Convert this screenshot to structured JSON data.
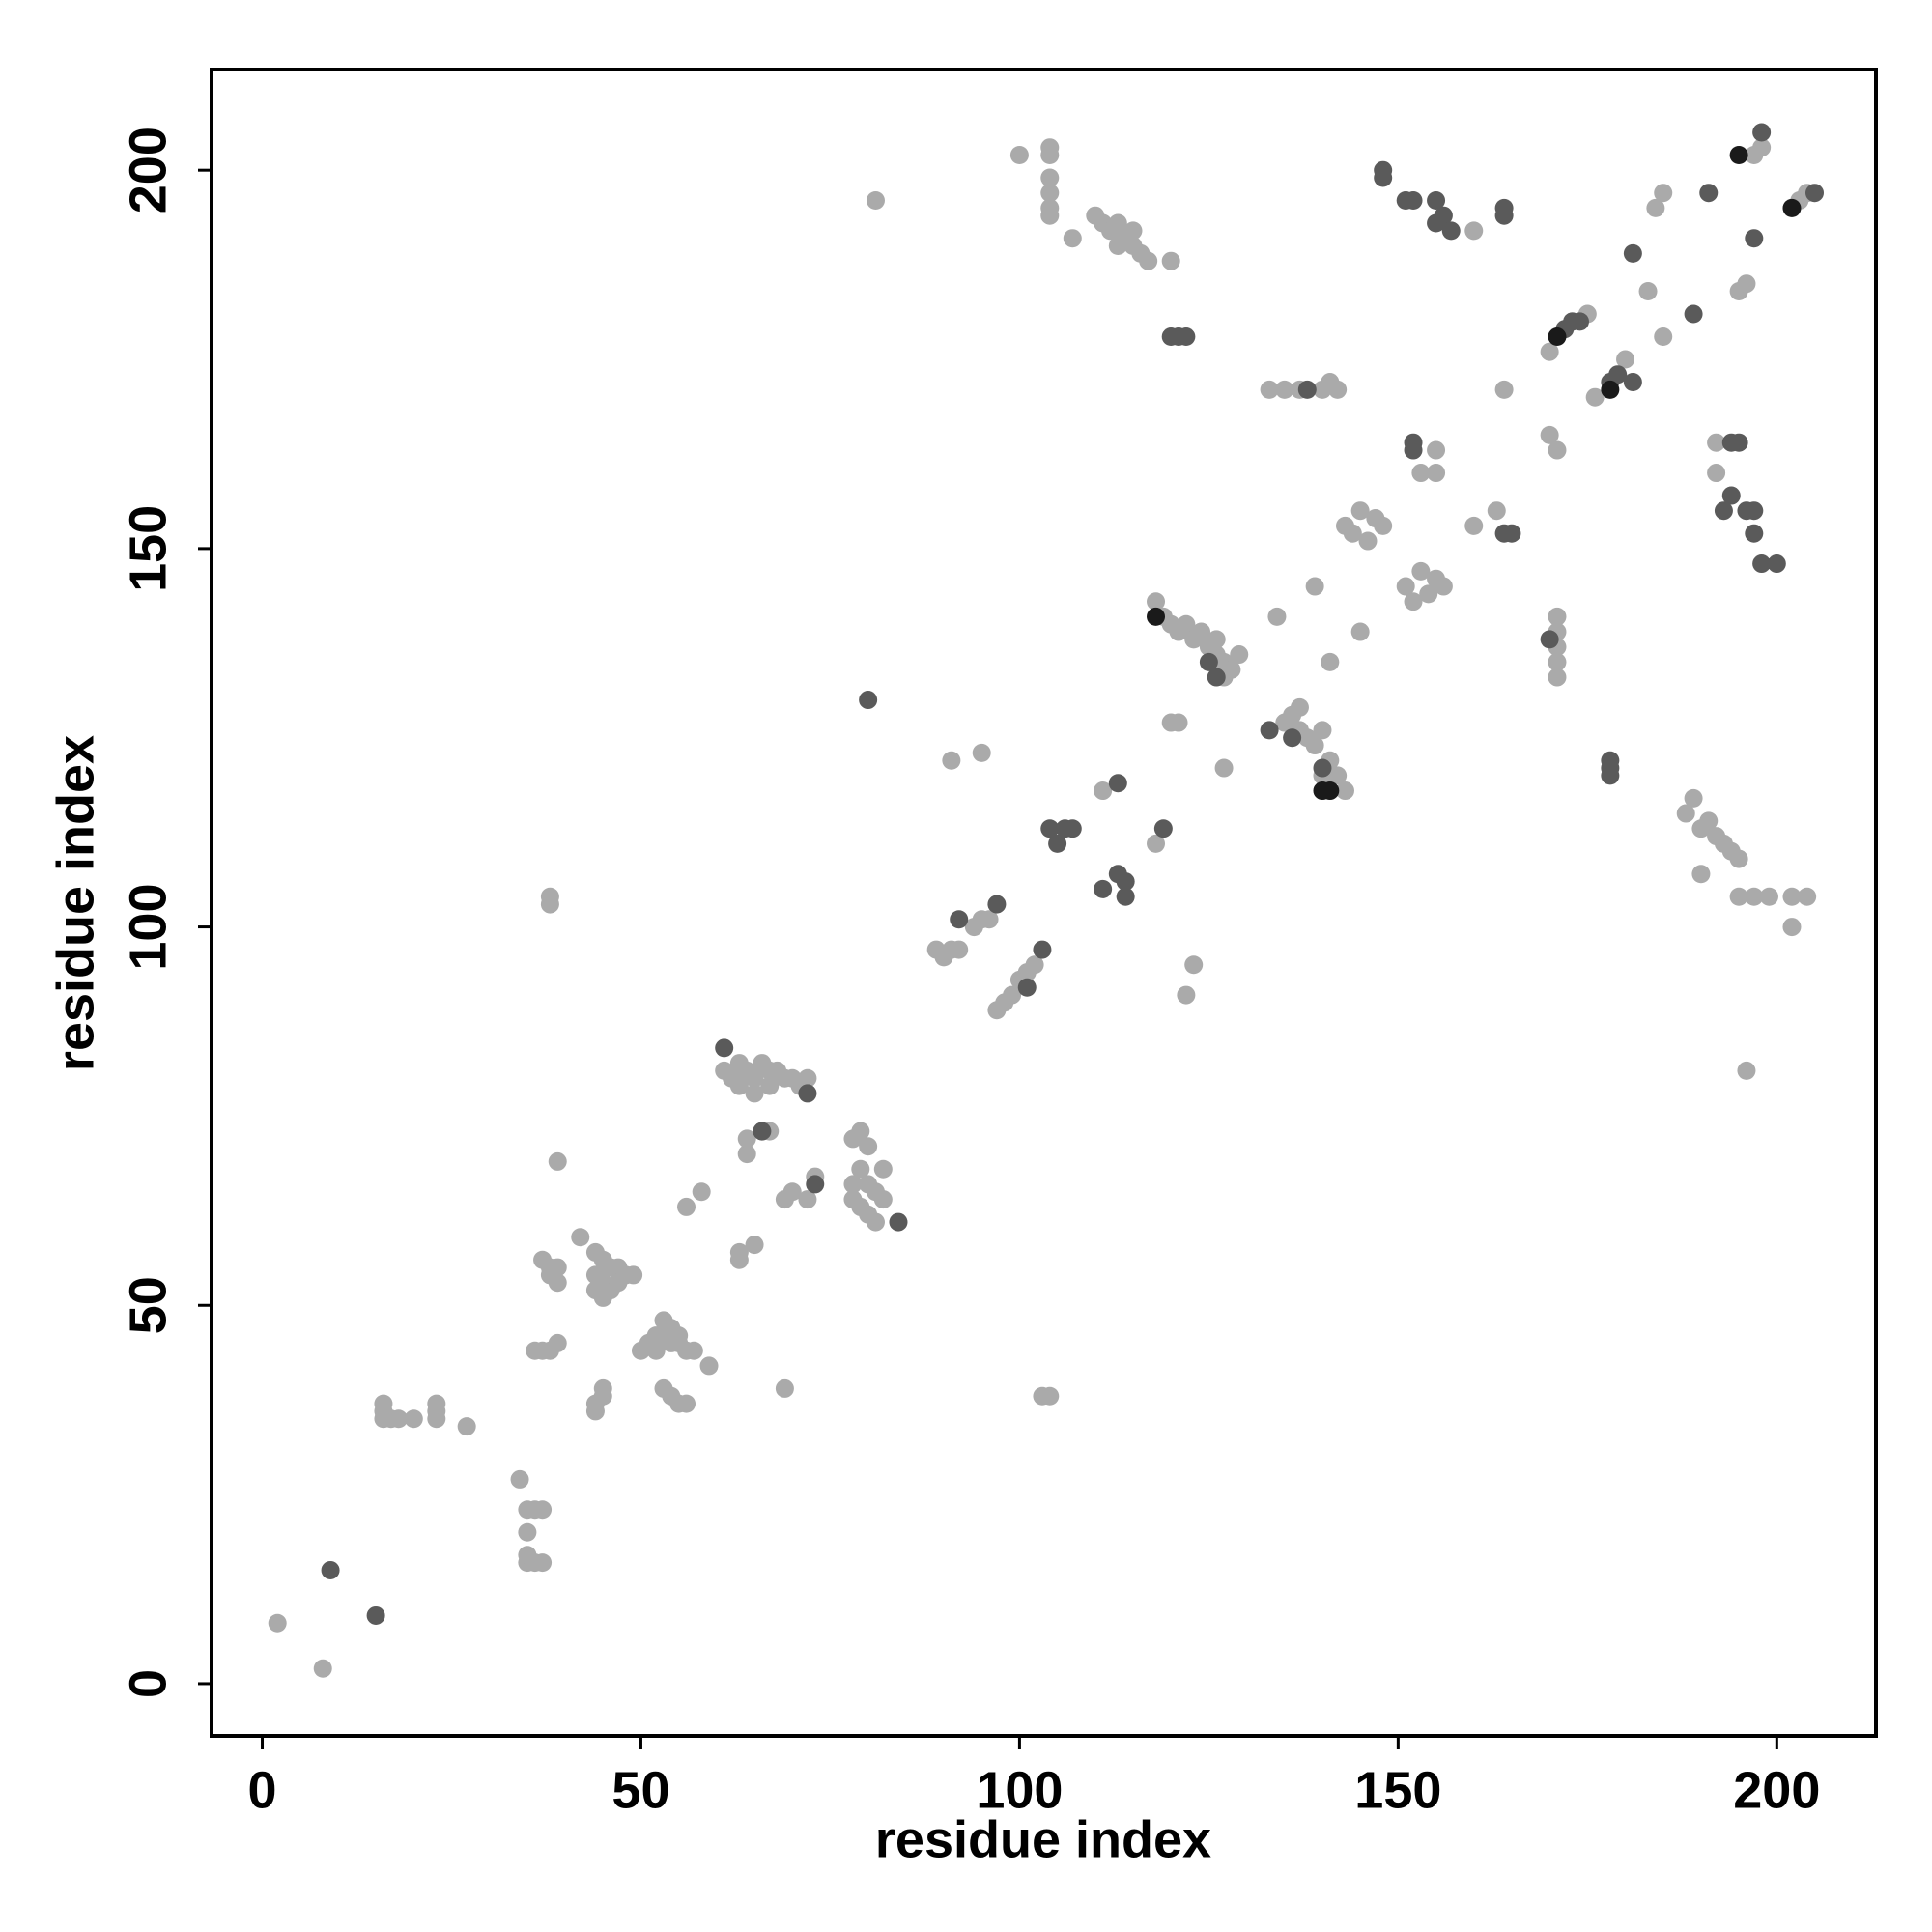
{
  "chart_data": {
    "type": "scatter",
    "xlabel": "residue index",
    "ylabel": "residue index",
    "xlim": [
      -6.7,
      213.1
    ],
    "ylim": [
      -6.9,
      213.3
    ],
    "xticks": [
      0,
      50,
      100,
      150,
      200
    ],
    "yticks": [
      0,
      50,
      100,
      150,
      200
    ],
    "grid": false,
    "series": [
      {
        "color": "#aaaaaa",
        "x": [
          2,
          8,
          16,
          16,
          16,
          17,
          18,
          20,
          23,
          23,
          23,
          27,
          34,
          35,
          36,
          37,
          35,
          35,
          36,
          37,
          35,
          36,
          37,
          38,
          39,
          37,
          38,
          39,
          38,
          39,
          38,
          38,
          39,
          42,
          44,
          45,
          46,
          47,
          48,
          44,
          45,
          46,
          44,
          45,
          49,
          47,
          44,
          44,
          45,
          45,
          50,
          51,
          52,
          53,
          54,
          55,
          56,
          57,
          52,
          53,
          54,
          55,
          53,
          54,
          55,
          56,
          59,
          56,
          58,
          63,
          63,
          65,
          69,
          61,
          62,
          63,
          64,
          65,
          66,
          67,
          68,
          69,
          70,
          71,
          72,
          63,
          65,
          67,
          64,
          64,
          66,
          67,
          69,
          70,
          72,
          73,
          78,
          79,
          80,
          79,
          80,
          81,
          78,
          79,
          80,
          81,
          82,
          82,
          78,
          81,
          89,
          90,
          91,
          92,
          94,
          95,
          96,
          97,
          98,
          99,
          100,
          101,
          102,
          91,
          95,
          100,
          104,
          104,
          104,
          104,
          104,
          104,
          103,
          104,
          107,
          110,
          111,
          112,
          113,
          114,
          115,
          116,
          117,
          120,
          113,
          115,
          111,
          118,
          120,
          121,
          122,
          123,
          118,
          119,
          120,
          121,
          122,
          123,
          124,
          125,
          126,
          127,
          128,
          129,
          126,
          127,
          127,
          135,
          136,
          137,
          138,
          139,
          140,
          137,
          134,
          139,
          141,
          142,
          143,
          140,
          133,
          135,
          137,
          140,
          141,
          142,
          141,
          145,
          143,
          144,
          145,
          146,
          147,
          148,
          151,
          152,
          153,
          154,
          155,
          156,
          153,
          155,
          155,
          160,
          160,
          163,
          164,
          170,
          171,
          171,
          171,
          171,
          171,
          171,
          170,
          173,
          175,
          176,
          180,
          183,
          184,
          185,
          185,
          188,
          189,
          190,
          191,
          192,
          193,
          194,
          195,
          190,
          195,
          197,
          199,
          202,
          204,
          202,
          196,
          192,
          192,
          195,
          196,
          197,
          198,
          202,
          203,
          204
        ],
        "y": [
          8,
          2,
          37,
          36,
          35,
          35,
          35,
          35,
          35,
          36,
          37,
          34,
          27,
          23,
          23,
          23,
          20,
          16,
          16,
          16,
          17,
          44,
          44,
          44,
          45,
          56,
          55,
          55,
          54,
          53,
          103,
          104,
          69,
          59,
          57,
          56,
          55,
          55,
          54,
          54,
          53,
          52,
          52,
          51,
          54,
          53,
          36,
          37,
          38,
          39,
          44,
          45,
          44,
          46,
          47,
          45,
          44,
          44,
          46,
          48,
          45,
          46,
          39,
          38,
          37,
          37,
          42,
          63,
          65,
          56,
          57,
          58,
          39,
          81,
          80,
          79,
          81,
          80,
          82,
          79,
          81,
          80,
          80,
          79,
          80,
          82,
          78,
          81,
          70,
          72,
          73,
          73,
          64,
          65,
          64,
          67,
          72,
          73,
          71,
          68,
          66,
          65,
          64,
          63,
          62,
          61,
          68,
          64,
          66,
          196,
          97,
          96,
          97,
          97,
          100,
          101,
          101,
          89,
          90,
          91,
          93,
          94,
          95,
          122,
          123,
          202,
          203,
          202,
          199,
          197,
          195,
          194,
          38,
          38,
          191,
          194,
          193,
          192,
          193,
          191,
          190,
          189,
          188,
          188,
          190,
          192,
          118,
          111,
          127,
          127,
          91,
          95,
          143,
          141,
          140,
          139,
          140,
          138,
          139,
          137,
          136,
          135,
          134,
          136,
          138,
          133,
          121,
          127,
          128,
          126,
          125,
          124,
          126,
          129,
          141,
          145,
          122,
          120,
          118,
          120,
          171,
          171,
          171,
          171,
          172,
          171,
          135,
          139,
          153,
          152,
          155,
          151,
          154,
          153,
          145,
          143,
          147,
          144,
          146,
          145,
          160,
          160,
          163,
          192,
          153,
          155,
          171,
          165,
          163,
          133,
          135,
          137,
          139,
          141,
          176,
          180,
          181,
          170,
          175,
          184,
          195,
          197,
          178,
          115,
          117,
          113,
          114,
          112,
          111,
          110,
          109,
          107,
          104,
          104,
          104,
          104,
          104,
          100,
          81,
          164,
          160,
          184,
          185,
          202,
          203,
          195,
          196,
          197
        ]
      },
      {
        "color": "#5a5a5a",
        "x": [
          9,
          15,
          61,
          66,
          73,
          72,
          80,
          84,
          92,
          97,
          101,
          103,
          104,
          105,
          106,
          107,
          113,
          111,
          113,
          114,
          114,
          119,
          120,
          121,
          122,
          126,
          125,
          133,
          136,
          140,
          148,
          148,
          151,
          152,
          155,
          155,
          156,
          157,
          164,
          164,
          152,
          152,
          164,
          165,
          138,
          170,
          172,
          173,
          174,
          178,
          178,
          178,
          178,
          179,
          181,
          181,
          189,
          191,
          194,
          195,
          193,
          194,
          196,
          197,
          197,
          198,
          200,
          197,
          198,
          205
        ],
        "y": [
          15,
          9,
          84,
          73,
          66,
          78,
          130,
          61,
          101,
          103,
          92,
          97,
          113,
          111,
          113,
          113,
          119,
          105,
          107,
          104,
          106,
          113,
          178,
          178,
          178,
          133,
          135,
          126,
          125,
          121,
          199,
          200,
          196,
          196,
          196,
          193,
          194,
          192,
          194,
          195,
          163,
          164,
          152,
          152,
          171,
          138,
          179,
          180,
          180,
          120,
          121,
          122,
          172,
          173,
          172,
          189,
          181,
          197,
          164,
          164,
          155,
          157,
          155,
          155,
          152,
          148,
          148,
          191,
          205,
          197
        ]
      },
      {
        "color": "#1a1a1a",
        "x": [
          118,
          140,
          141,
          171,
          178,
          195,
          202
        ],
        "y": [
          141,
          118,
          118,
          178,
          171,
          202,
          195
        ]
      }
    ]
  }
}
